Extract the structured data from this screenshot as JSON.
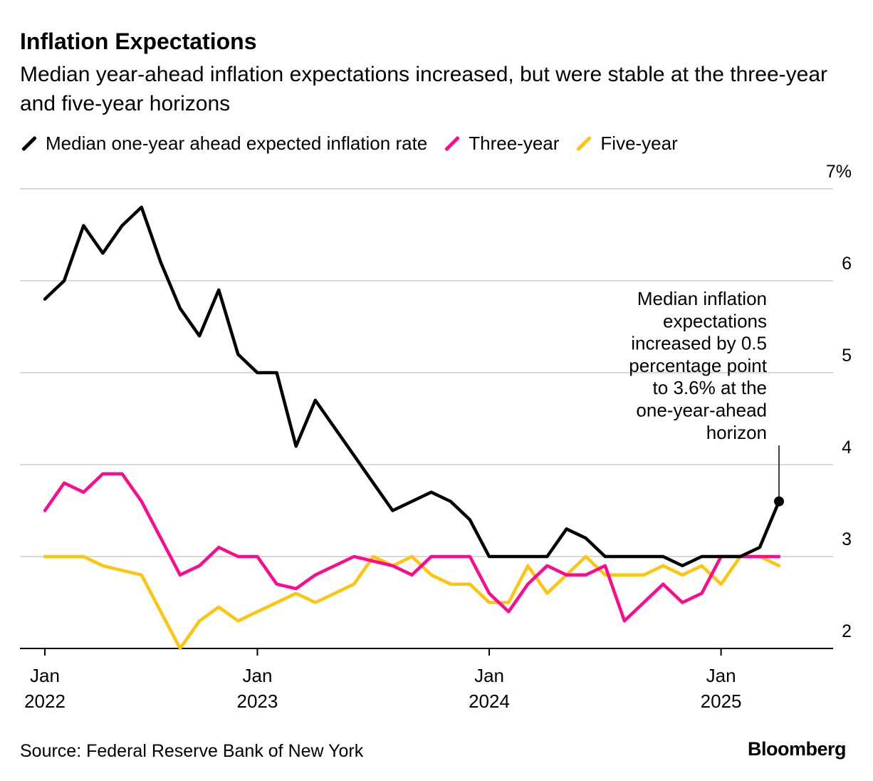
{
  "title": "Inflation Expectations",
  "subtitle": "Median year-ahead inflation expectations increased, but were stable at the three-year and five-year horizons",
  "source": "Source: Federal Reserve Bank of New York",
  "logo": "Bloomberg",
  "chart_data": {
    "type": "line",
    "title": "Inflation Expectations",
    "xlabel": "",
    "ylabel": "",
    "ylim": [
      2,
      7
    ],
    "yticks": [
      2,
      3,
      4,
      5,
      6,
      7
    ],
    "ytick_labels": [
      "2",
      "3",
      "4",
      "5",
      "6",
      "7%"
    ],
    "x": [
      "Jan 2022",
      "Feb 2022",
      "Mar 2022",
      "Apr 2022",
      "May 2022",
      "Jun 2022",
      "Jul 2022",
      "Aug 2022",
      "Sep 2022",
      "Oct 2022",
      "Nov 2022",
      "Dec 2022",
      "Jan 2023",
      "Feb 2023",
      "Mar 2023",
      "Apr 2023",
      "May 2023",
      "Jun 2023",
      "Jul 2023",
      "Aug 2023",
      "Sep 2023",
      "Oct 2023",
      "Nov 2023",
      "Dec 2023",
      "Jan 2024",
      "Feb 2024",
      "Mar 2024",
      "Apr 2024",
      "May 2024",
      "Jun 2024",
      "Jul 2024",
      "Aug 2024",
      "Sep 2024",
      "Oct 2024",
      "Nov 2024",
      "Dec 2024",
      "Jan 2025",
      "Feb 2025",
      "Mar 2025"
    ],
    "xticks": [
      {
        "index": 0,
        "month": "Jan",
        "year": "2022"
      },
      {
        "index": 11,
        "month": "Jan",
        "year": "2023"
      },
      {
        "index": 23,
        "month": "Jan",
        "year": "2024"
      },
      {
        "index": 35,
        "month": "Jan",
        "year": "2025"
      }
    ],
    "legend_position": "top-left",
    "series": [
      {
        "name": "Median one-year ahead expected inflation rate",
        "color": "#000000",
        "values": [
          5.8,
          6.0,
          6.6,
          6.3,
          6.6,
          6.8,
          6.2,
          5.7,
          5.4,
          5.9,
          5.2,
          5.0,
          5.0,
          4.2,
          4.7,
          4.4,
          4.1,
          3.8,
          3.5,
          3.6,
          3.7,
          3.6,
          3.4,
          3.0,
          3.0,
          3.0,
          3.0,
          3.3,
          3.2,
          3.0,
          3.0,
          3.0,
          3.0,
          2.9,
          3.0,
          3.0,
          3.0,
          3.1,
          3.6
        ]
      },
      {
        "name": "Three-year",
        "color": "#ff0a8f",
        "values": [
          3.5,
          3.8,
          3.7,
          3.9,
          3.9,
          3.6,
          3.2,
          2.8,
          2.9,
          3.1,
          3.0,
          3.0,
          2.7,
          2.65,
          2.8,
          2.9,
          3.0,
          2.95,
          2.9,
          2.8,
          3.0,
          3.0,
          3.0,
          2.6,
          2.4,
          2.7,
          2.9,
          2.8,
          2.8,
          2.9,
          2.3,
          2.5,
          2.7,
          2.5,
          2.6,
          3.0,
          3.0,
          3.0,
          3.0
        ]
      },
      {
        "name": "Five-year",
        "color": "#ffc40c",
        "values": [
          3.0,
          3.0,
          3.0,
          2.9,
          2.85,
          2.8,
          2.4,
          2.0,
          2.3,
          2.45,
          2.3,
          2.4,
          2.5,
          2.6,
          2.5,
          2.6,
          2.7,
          3.0,
          2.9,
          3.0,
          2.8,
          2.7,
          2.7,
          2.5,
          2.5,
          2.9,
          2.6,
          2.8,
          3.0,
          2.8,
          2.8,
          2.8,
          2.9,
          2.8,
          2.9,
          2.7,
          3.0,
          3.0,
          2.9
        ]
      }
    ],
    "annotation": {
      "lines": [
        "Median inflation",
        "expectations",
        "increased by 0.5",
        "percentage point",
        "to 3.6% at the",
        "one-year-ahead",
        "horizon"
      ],
      "series": 0,
      "index": 38
    }
  }
}
